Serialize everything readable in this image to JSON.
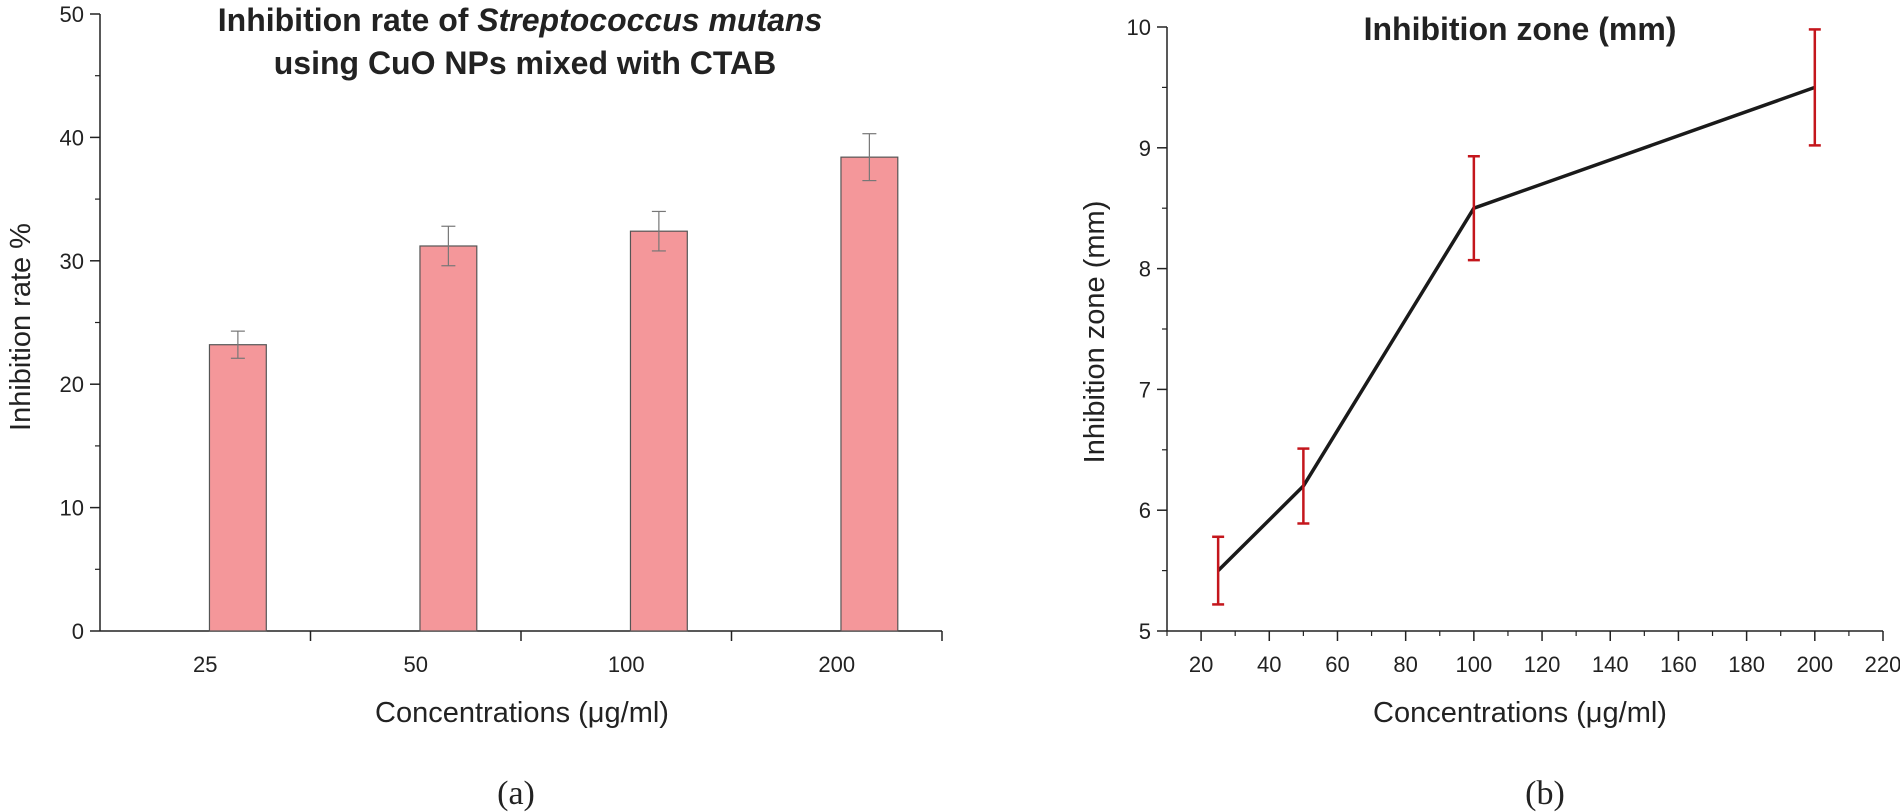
{
  "chart_data": [
    {
      "type": "bar",
      "panel_label": "(a)",
      "title_line1_prefix": "Inhibition rate of ",
      "title_line1_italic": "Streptococcus mutans",
      "title_line2": "using CuO NPs mixed  with CTAB",
      "xlabel": "Concentrations (μg/ml)",
      "ylabel": "Inhibition rate %",
      "ylim": [
        0,
        50
      ],
      "yticks": [
        "0",
        "10",
        "20",
        "30",
        "40",
        "50"
      ],
      "categories": [
        "25",
        "50",
        "100",
        "200"
      ],
      "values": [
        23.2,
        31.2,
        32.4,
        38.4
      ],
      "errors": [
        1.1,
        1.6,
        1.6,
        1.9
      ],
      "bar_color": "#f4979a"
    },
    {
      "type": "line",
      "panel_label": "(b)",
      "title": "Inhibition zone (mm)",
      "xlabel": "Concentrations (μg/ml)",
      "ylabel": "Inhibition zone (mm)",
      "xlim": [
        10,
        220
      ],
      "ylim": [
        5,
        10
      ],
      "xticks": [
        "20",
        "40",
        "60",
        "80",
        "100",
        "120",
        "140",
        "160",
        "180",
        "200",
        "220"
      ],
      "yticks": [
        "5",
        "6",
        "7",
        "8",
        "9",
        "10"
      ],
      "x": [
        25,
        50,
        100,
        200
      ],
      "y": [
        5.5,
        6.2,
        8.5,
        9.5
      ],
      "errors": [
        0.28,
        0.31,
        0.43,
        0.48
      ],
      "line_color": "#1a1a1a",
      "error_color": "#c4161c"
    }
  ]
}
